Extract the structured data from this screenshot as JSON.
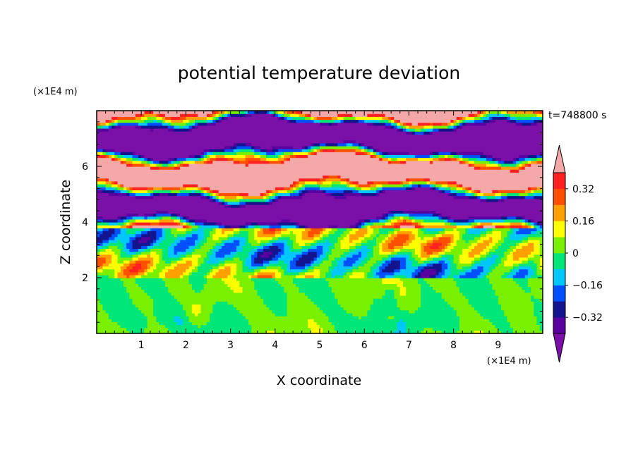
{
  "chart_data": {
    "type": "heatmap",
    "title": "potential temperature deviation",
    "xlabel": "X coordinate",
    "ylabel": "Z coordinate",
    "x_unit": "(×1E4 m)",
    "z_unit": "(×1E4 m)",
    "time_label": "t=748800 s",
    "x_range": [
      0,
      10
    ],
    "z_range": [
      0,
      8
    ],
    "x_ticks": [
      "1",
      "2",
      "3",
      "4",
      "5",
      "6",
      "7",
      "8",
      "9"
    ],
    "z_ticks": [
      "2",
      "4",
      "6"
    ],
    "colorbar": {
      "levels": [
        -0.4,
        -0.32,
        -0.24,
        -0.16,
        -0.08,
        0,
        0.08,
        0.16,
        0.24,
        0.32,
        0.4
      ],
      "labels": [
        "0.32",
        "0.16",
        "0",
        "−0.16",
        "−0.32"
      ],
      "label_values": [
        0.32,
        0.16,
        0,
        -0.16,
        -0.32
      ],
      "colors_low_to_high": [
        "#5a00a0",
        "#14148c",
        "#0050ff",
        "#00c8ff",
        "#00e678",
        "#78f000",
        "#ffff00",
        "#ffa000",
        "#ff5000",
        "#ff2020"
      ],
      "under_color": "#7a10a8",
      "over_color": "#f4a8a8"
    }
  }
}
